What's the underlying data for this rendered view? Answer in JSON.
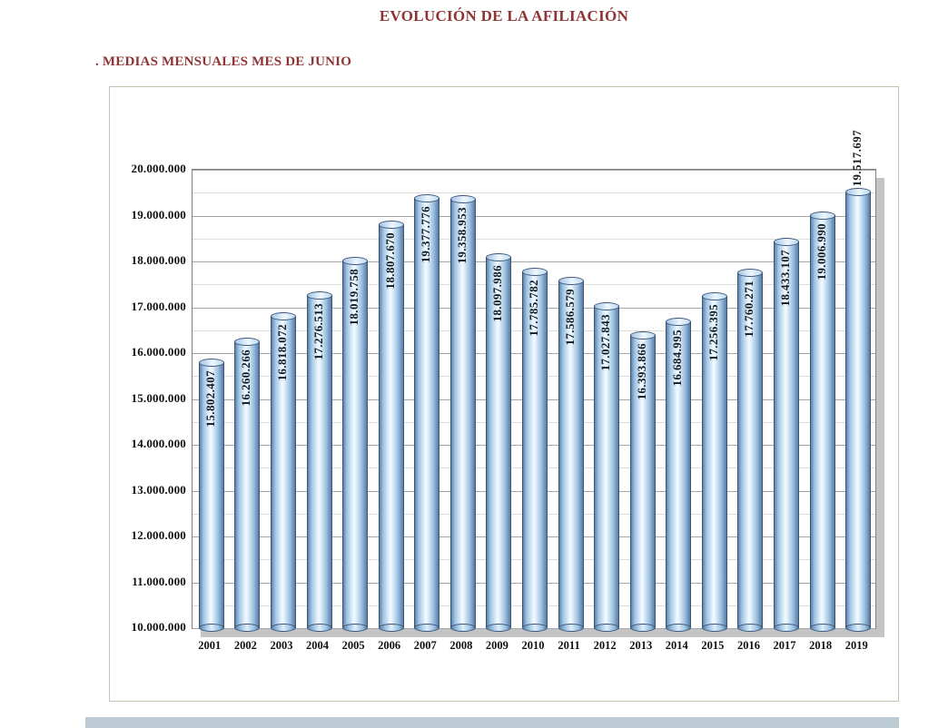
{
  "page": {
    "title": "EVOLUCIÓN DE LA AFILIACIÓN",
    "subtitle": ". MEDIAS MENSUALES MES DE JUNIO"
  },
  "chart_data": {
    "type": "bar",
    "style": "3d-cylinder-vertical",
    "title": "EVOLUCIÓN DE LA AFILIACIÓN",
    "subtitle": ". MEDIAS MENSUALES MES DE JUNIO",
    "categories": [
      "2001",
      "2002",
      "2003",
      "2004",
      "2005",
      "2006",
      "2007",
      "2008",
      "2009",
      "2010",
      "2011",
      "2012",
      "2013",
      "2014",
      "2015",
      "2016",
      "2017",
      "2018",
      "2019"
    ],
    "values": [
      15802407,
      16260266,
      16818072,
      17276513,
      18019758,
      18807670,
      19377776,
      19358953,
      18097986,
      17785782,
      17586579,
      17027843,
      16393866,
      16684995,
      17256395,
      17760271,
      18433107,
      19006990,
      19517697
    ],
    "value_labels": [
      "15.802.407",
      "16.260.266",
      "16.818.072",
      "17.276.513",
      "18.019.758",
      "18.807.670",
      "19.377.776",
      "19.358.953",
      "18.097.986",
      "17.785.782",
      "17.586.579",
      "17.027.843",
      "16.393.866",
      "16.684.995",
      "17.256.395",
      "17.760.271",
      "18.433.107",
      "19.006.990",
      "19.517.697"
    ],
    "xlabel": "",
    "ylabel": "",
    "ylim": [
      10000000,
      20000000
    ],
    "y_major_tick": 1000000,
    "y_minor_tick": 500000,
    "y_tick_labels": [
      "10.000.000",
      "11.000.000",
      "12.000.000",
      "13.000.000",
      "14.000.000",
      "15.000.000",
      "16.000.000",
      "17.000.000",
      "18.000.000",
      "19.000.000",
      "20.000.000"
    ],
    "grid": "horizontal major+minor",
    "legend": "none",
    "colors": {
      "title": "#8e3434",
      "bar_fill": "#b8d3ec",
      "bar_edge": "#3a557a",
      "value_label": "#101820",
      "gridline_major": "#a6a6a6",
      "gridline_minor": "#dddddd",
      "plot_border": "#7f7f7f",
      "shadow": "#c4c4c4",
      "frame_border": "#c9c2b2"
    }
  }
}
